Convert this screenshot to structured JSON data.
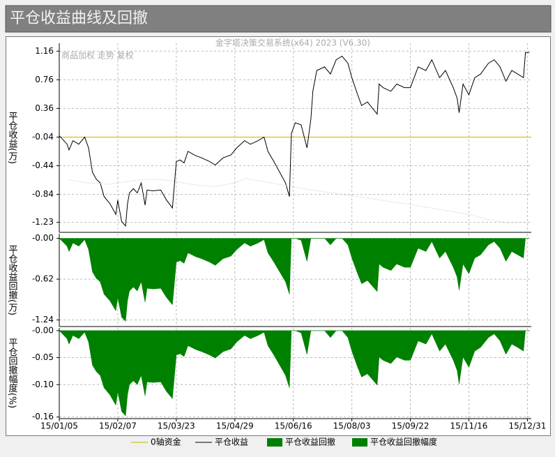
{
  "header": {
    "title": "平仓收益曲线及回撤"
  },
  "chart_data": [
    {
      "type": "line",
      "title": "金字塔决策交易系统(x64) 2023 (V6.30)",
      "subtitle": "商品加权 走势 复权",
      "y_label": "平仓收益(万)",
      "ylim": [
        -1.37,
        1.27
      ],
      "yticks": [
        1.16,
        0.76,
        0.36,
        -0.04,
        -0.44,
        -0.84,
        -1.23
      ],
      "grid": true,
      "zero_axis": {
        "name": "0轴资金",
        "value": -0.04,
        "color": "#c8b400"
      },
      "series": [
        {
          "name": "平仓收益",
          "color": "#000000",
          "x": [
            0,
            4,
            5,
            7,
            10,
            13,
            15,
            17,
            19,
            21,
            23,
            26,
            29,
            30,
            32,
            34,
            35,
            36,
            38,
            40,
            42,
            44,
            45,
            48,
            52,
            55,
            58,
            60,
            62,
            64,
            66,
            70,
            73,
            77,
            80,
            84,
            88,
            91,
            95,
            98,
            102,
            105,
            107,
            110,
            113,
            116,
            118,
            119,
            121,
            124,
            127,
            129,
            130,
            132,
            136,
            139,
            142,
            145,
            148,
            150,
            153,
            155,
            158,
            163,
            164,
            166,
            170,
            173,
            177,
            180,
            184,
            188,
            191,
            195,
            198,
            202,
            204,
            205,
            207,
            210,
            213,
            216,
            220,
            223,
            226,
            229,
            232,
            235,
            238,
            239,
            241
          ],
          "values": [
            -0.02,
            -0.14,
            -0.22,
            -0.09,
            -0.14,
            -0.04,
            -0.19,
            -0.53,
            -0.63,
            -0.68,
            -0.87,
            -0.97,
            -1.12,
            -0.92,
            -1.22,
            -1.28,
            -0.97,
            -0.82,
            -0.76,
            -0.82,
            -0.68,
            -0.99,
            -0.78,
            -0.79,
            -0.78,
            -0.92,
            -1.03,
            -0.38,
            -0.36,
            -0.4,
            -0.24,
            -0.3,
            -0.33,
            -0.38,
            -0.43,
            -0.33,
            -0.29,
            -0.19,
            -0.09,
            -0.14,
            -0.09,
            -0.04,
            -0.24,
            -0.38,
            -0.53,
            -0.68,
            -0.87,
            0.01,
            0.16,
            0.13,
            -0.19,
            0.21,
            0.6,
            0.89,
            0.94,
            0.84,
            1.04,
            1.09,
            0.99,
            0.79,
            0.55,
            0.4,
            0.45,
            0.28,
            0.7,
            0.65,
            0.6,
            0.7,
            0.65,
            0.65,
            0.94,
            0.89,
            1.04,
            0.79,
            0.89,
            0.65,
            0.5,
            0.3,
            0.7,
            0.55,
            0.79,
            0.84,
            0.99,
            1.04,
            0.94,
            0.74,
            0.89,
            0.84,
            0.79,
            1.14,
            1.14
          ]
        },
        {
          "color": "#bbbbbb",
          "dotted": true,
          "x": [
            5,
            15,
            25,
            40,
            50,
            60,
            70,
            80,
            90,
            95,
            105,
            115,
            125,
            135,
            150,
            165,
            180,
            195,
            210,
            220,
            230,
            238,
            241
          ],
          "values": [
            -0.64,
            -0.68,
            -0.7,
            -0.64,
            -0.63,
            -0.66,
            -0.71,
            -0.73,
            -0.68,
            -0.62,
            -0.66,
            -0.71,
            -0.76,
            -0.8,
            -0.86,
            -0.92,
            -0.98,
            -1.05,
            -1.12,
            -1.19,
            -1.24,
            -1.23,
            -1.25
          ]
        }
      ]
    },
    {
      "type": "area",
      "y_label": "平仓收益回撤(万)",
      "ylim": [
        -1.34,
        0.07
      ],
      "yticks": [
        {
          "value": 0,
          "label": "-0.00"
        },
        -0.62,
        -1.24
      ],
      "grid": true,
      "series": [
        {
          "name": "平仓收益回撤",
          "color": "#008000",
          "x": [
            0,
            4,
            5,
            7,
            10,
            13,
            15,
            17,
            19,
            21,
            23,
            26,
            29,
            30,
            32,
            34,
            35,
            36,
            38,
            40,
            42,
            44,
            45,
            48,
            52,
            55,
            58,
            60,
            62,
            64,
            66,
            70,
            73,
            77,
            80,
            84,
            88,
            91,
            95,
            98,
            102,
            105,
            107,
            110,
            113,
            116,
            118,
            119,
            121,
            124,
            127,
            129,
            130,
            132,
            136,
            139,
            142,
            145,
            148,
            150,
            153,
            155,
            158,
            163,
            164,
            166,
            170,
            173,
            177,
            180,
            184,
            188,
            191,
            195,
            198,
            202,
            204,
            205,
            207,
            210,
            213,
            216,
            220,
            223,
            226,
            229,
            232,
            235,
            238,
            239,
            241
          ],
          "values": [
            0,
            -0.12,
            -0.2,
            -0.07,
            -0.12,
            -0.02,
            -0.17,
            -0.51,
            -0.61,
            -0.66,
            -0.85,
            -0.95,
            -1.1,
            -0.9,
            -1.2,
            -1.26,
            -0.95,
            -0.8,
            -0.74,
            -0.8,
            -0.66,
            -0.97,
            -0.76,
            -0.77,
            -0.76,
            -0.9,
            -1.01,
            -0.36,
            -0.34,
            -0.38,
            -0.22,
            -0.28,
            -0.31,
            -0.36,
            -0.41,
            -0.31,
            -0.27,
            -0.17,
            -0.07,
            -0.12,
            -0.07,
            -0.02,
            -0.22,
            -0.36,
            -0.51,
            -0.66,
            -0.85,
            0,
            0,
            -0.03,
            -0.35,
            0,
            0,
            0,
            0,
            -0.1,
            0,
            0,
            -0.1,
            -0.3,
            -0.54,
            -0.69,
            -0.64,
            -0.81,
            -0.39,
            -0.44,
            -0.49,
            -0.39,
            -0.44,
            -0.44,
            -0.15,
            -0.2,
            -0.05,
            -0.3,
            -0.2,
            -0.44,
            -0.59,
            -0.79,
            -0.39,
            -0.54,
            -0.3,
            -0.25,
            -0.1,
            -0.05,
            -0.15,
            -0.35,
            -0.2,
            -0.25,
            -0.3,
            0,
            0
          ]
        }
      ]
    },
    {
      "type": "area",
      "y_label": "平仓回撤幅度(%)",
      "ylim": [
        -0.163,
        0.005
      ],
      "yticks": [
        {
          "value": 0,
          "label": "-0.00"
        },
        -0.05,
        {
          "value": -0.1,
          "label": "-0.10"
        },
        -0.16
      ],
      "grid": true,
      "xlim": [
        0,
        242
      ],
      "xticks": [
        {
          "value": 0,
          "label": "15/01/05"
        },
        {
          "value": 30,
          "label": "15/02/07"
        },
        {
          "value": 60,
          "label": "15/03/23"
        },
        {
          "value": 90,
          "label": "15/04/29"
        },
        {
          "value": 120,
          "label": "15/06/16"
        },
        {
          "value": 150,
          "label": "15/08/03"
        },
        {
          "value": 180,
          "label": "15/09/22"
        },
        {
          "value": 210,
          "label": "15/11/16"
        },
        {
          "value": 240,
          "label": "15/12/31"
        }
      ],
      "series": [
        {
          "name": "平仓收益回撤幅度",
          "color": "#008000",
          "x": [
            0,
            4,
            5,
            7,
            10,
            13,
            15,
            17,
            19,
            21,
            23,
            26,
            29,
            30,
            32,
            34,
            35,
            36,
            38,
            40,
            42,
            44,
            45,
            48,
            52,
            55,
            58,
            60,
            62,
            64,
            66,
            70,
            73,
            77,
            80,
            84,
            88,
            91,
            95,
            98,
            102,
            105,
            107,
            110,
            113,
            116,
            118,
            119,
            121,
            124,
            127,
            129,
            130,
            132,
            136,
            139,
            142,
            145,
            148,
            150,
            153,
            155,
            158,
            163,
            164,
            166,
            170,
            173,
            177,
            180,
            184,
            188,
            191,
            195,
            198,
            202,
            204,
            205,
            207,
            210,
            213,
            216,
            220,
            223,
            226,
            229,
            232,
            235,
            238,
            239,
            241
          ],
          "values": [
            0,
            -0.015,
            -0.025,
            -0.009,
            -0.015,
            -0.003,
            -0.021,
            -0.064,
            -0.076,
            -0.083,
            -0.106,
            -0.119,
            -0.138,
            -0.113,
            -0.15,
            -0.158,
            -0.119,
            -0.1,
            -0.093,
            -0.1,
            -0.083,
            -0.121,
            -0.095,
            -0.096,
            -0.095,
            -0.113,
            -0.126,
            -0.045,
            -0.043,
            -0.048,
            -0.028,
            -0.035,
            -0.039,
            -0.045,
            -0.051,
            -0.039,
            -0.034,
            -0.021,
            -0.009,
            -0.015,
            -0.009,
            -0.003,
            -0.028,
            -0.045,
            -0.064,
            -0.083,
            -0.106,
            0,
            0,
            -0.004,
            -0.044,
            0,
            0,
            0,
            0,
            -0.013,
            0,
            0,
            -0.013,
            -0.038,
            -0.068,
            -0.086,
            -0.08,
            -0.101,
            -0.049,
            -0.055,
            -0.061,
            -0.049,
            -0.055,
            -0.055,
            -0.019,
            -0.025,
            -0.006,
            -0.038,
            -0.025,
            -0.055,
            -0.074,
            -0.099,
            -0.049,
            -0.068,
            -0.038,
            -0.031,
            -0.013,
            -0.006,
            -0.019,
            -0.044,
            -0.025,
            -0.031,
            -0.038,
            0,
            0
          ]
        }
      ]
    }
  ]
}
